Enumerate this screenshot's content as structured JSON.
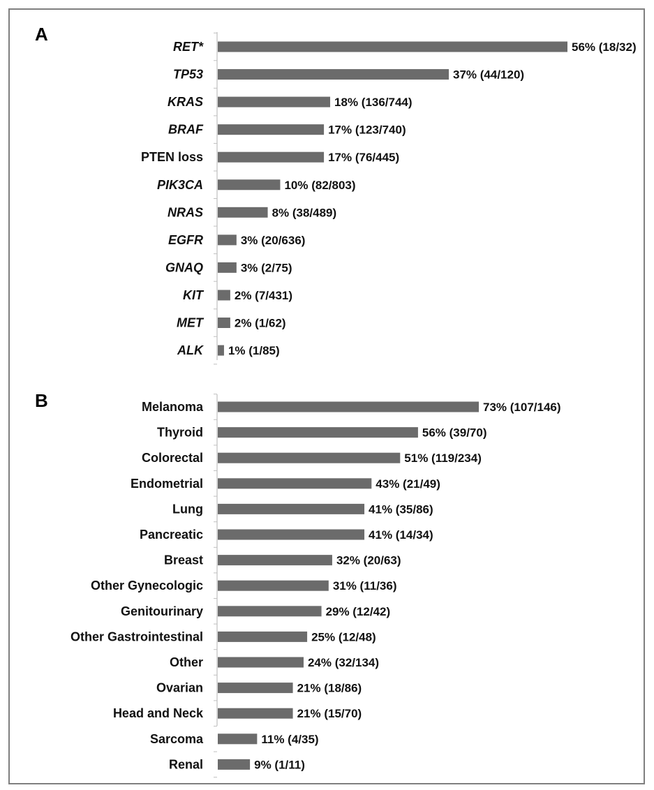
{
  "chart_data": [
    {
      "panel": "A",
      "type": "bar",
      "orientation": "horizontal",
      "italic_categories": true,
      "categories": [
        "RET*",
        "TP53",
        "KRAS",
        "BRAF",
        "PTEN loss",
        "PIK3CA",
        "NRAS",
        "EGFR",
        "GNAQ",
        "KIT",
        "MET",
        "ALK"
      ],
      "italic": [
        true,
        true,
        true,
        true,
        false,
        true,
        true,
        true,
        true,
        true,
        true,
        true
      ],
      "values": [
        56,
        37,
        18,
        17,
        17,
        10,
        8,
        3,
        3,
        2,
        2,
        1
      ],
      "labels": [
        "56% (18/32)",
        "37% (44/120)",
        "18% (136/744)",
        "17% (123/740)",
        "17% (76/445)",
        "10% (82/803)",
        "8% (38/489)",
        "3% (20/636)",
        "3% (2/75)",
        "2% (7/431)",
        "2% (1/62)",
        "1% (1/85)"
      ],
      "xlim": [
        0,
        56
      ],
      "grid": false,
      "bar_color": "#6b6b6b"
    },
    {
      "panel": "B",
      "type": "bar",
      "orientation": "horizontal",
      "categories": [
        "Melanoma",
        "Thyroid",
        "Colorectal",
        "Endometrial",
        "Lung",
        "Pancreatic",
        "Breast",
        "Other Gynecologic",
        "Genitourinary",
        "Other Gastrointestinal",
        "Other",
        "Ovarian",
        "Head and Neck",
        "Sarcoma",
        "Renal"
      ],
      "values": [
        73,
        56,
        51,
        43,
        41,
        41,
        32,
        31,
        29,
        25,
        24,
        21,
        21,
        11,
        9
      ],
      "labels": [
        "73% (107/146)",
        "56% (39/70)",
        "51%  (119/234)",
        "43% (21/49)",
        "41% (35/86)",
        "41% (14/34)",
        "32% (20/63)",
        "31% (11/36)",
        "29% (12/42)",
        "25% (12/48)",
        "24% (32/134)",
        "21% (18/86)",
        "21% (15/70)",
        "11% (4/35)",
        "9% (1/11)"
      ],
      "xlim": [
        0,
        73
      ],
      "grid": false,
      "bar_color": "#6b6b6b"
    }
  ]
}
